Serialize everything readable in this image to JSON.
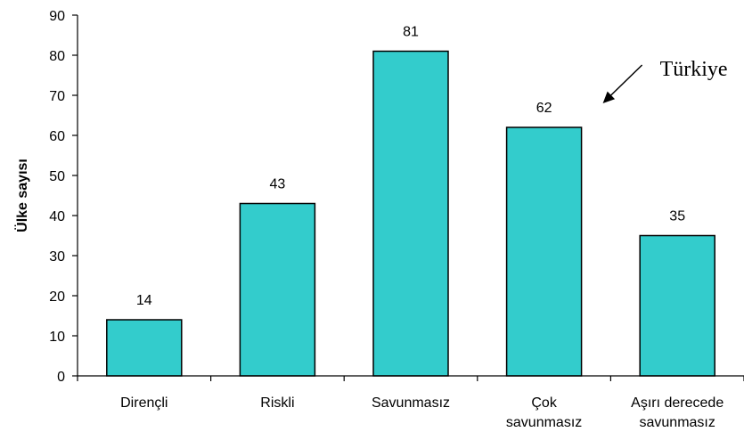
{
  "chart_data": {
    "type": "bar",
    "categories": [
      [
        "Dirençli"
      ],
      [
        "Riskli"
      ],
      [
        "Savunmasız"
      ],
      [
        "Çok",
        "savunmasız"
      ],
      [
        "Aşırı derecede",
        "savunmasız"
      ]
    ],
    "values": [
      14,
      43,
      81,
      62,
      35
    ],
    "data_labels": [
      "14",
      "43",
      "81",
      "62",
      "35"
    ],
    "ylabel": "Ülke sayısı",
    "xlabel": "",
    "ylim": [
      0,
      90
    ],
    "yticks": [
      0,
      10,
      20,
      30,
      40,
      50,
      60,
      70,
      80,
      90
    ],
    "grid": false,
    "legend": "none",
    "bar_color": "#33CCCC",
    "bar_stroke": "#000000",
    "annotation": {
      "text": "Türkiye",
      "points_to": "Çok savunmasız"
    }
  }
}
